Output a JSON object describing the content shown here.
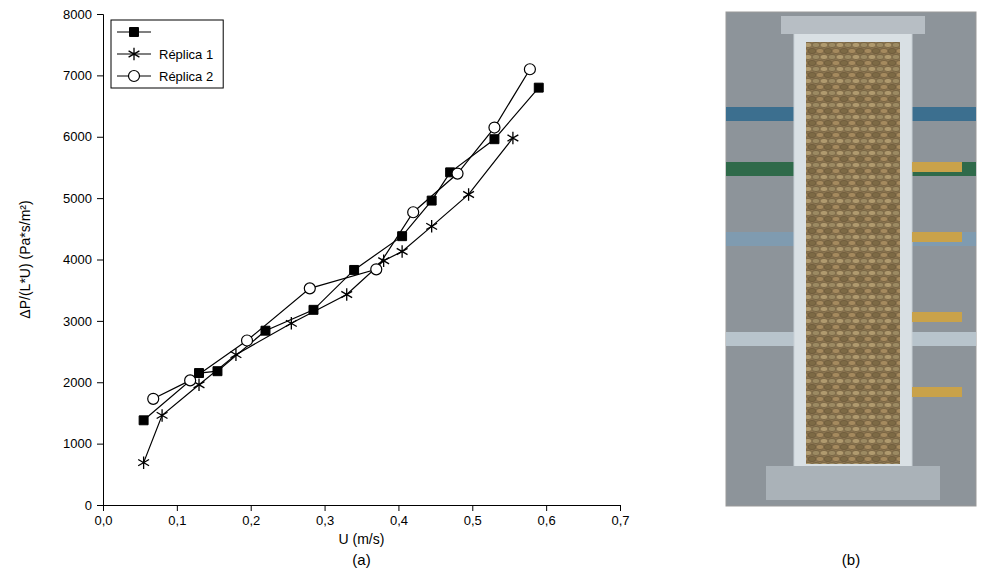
{
  "chart_data": {
    "type": "line",
    "xlabel": "U (m/s)",
    "ylabel": "ΔP/(L*U) (Pa*s/m²)",
    "xlim": [
      0,
      0.7
    ],
    "xticks": [
      {
        "value": 0,
        "label": "0,0"
      },
      {
        "value": 0.1,
        "label": "0,1"
      },
      {
        "value": 0.2,
        "label": "0,2"
      },
      {
        "value": 0.3,
        "label": "0,3"
      },
      {
        "value": 0.4,
        "label": "0,4"
      },
      {
        "value": 0.5,
        "label": "0,5"
      },
      {
        "value": 0.6,
        "label": "0,6"
      },
      {
        "value": 0.7,
        "label": "0,7"
      }
    ],
    "ylim": [
      0,
      8000
    ],
    "yticks": [
      0,
      1000,
      2000,
      3000,
      4000,
      5000,
      6000,
      7000,
      8000
    ],
    "legend": "upper left",
    "series": [
      {
        "name": null,
        "color": "#000000",
        "marker": "square",
        "x": [
          0.055,
          0.13,
          0.155,
          0.22,
          0.285,
          0.34,
          0.405,
          0.445,
          0.47,
          0.53,
          0.59
        ],
        "values": [
          1380,
          2150,
          2180,
          2840,
          3180,
          3830,
          4380,
          4960,
          5420,
          5960,
          6800
        ]
      },
      {
        "name": "Réplica 1",
        "color": "#000000",
        "marker": "star",
        "x": [
          0.055,
          0.08,
          0.13,
          0.18,
          0.255,
          0.33,
          0.38,
          0.405,
          0.445,
          0.495,
          0.555
        ],
        "values": [
          690,
          1460,
          1960,
          2450,
          2960,
          3430,
          3980,
          4130,
          4540,
          5060,
          5980
        ]
      },
      {
        "name": "Réplica 2",
        "color": "#000000",
        "marker": "circle",
        "x": [
          0.068,
          0.118,
          0.195,
          0.28,
          0.37,
          0.42,
          0.48,
          0.53,
          0.578
        ],
        "values": [
          1730,
          2030,
          2680,
          3530,
          3840,
          4770,
          5400,
          6150,
          7100
        ]
      }
    ]
  },
  "figure": {
    "panel_labels": [
      "(a)",
      "(b)"
    ]
  }
}
